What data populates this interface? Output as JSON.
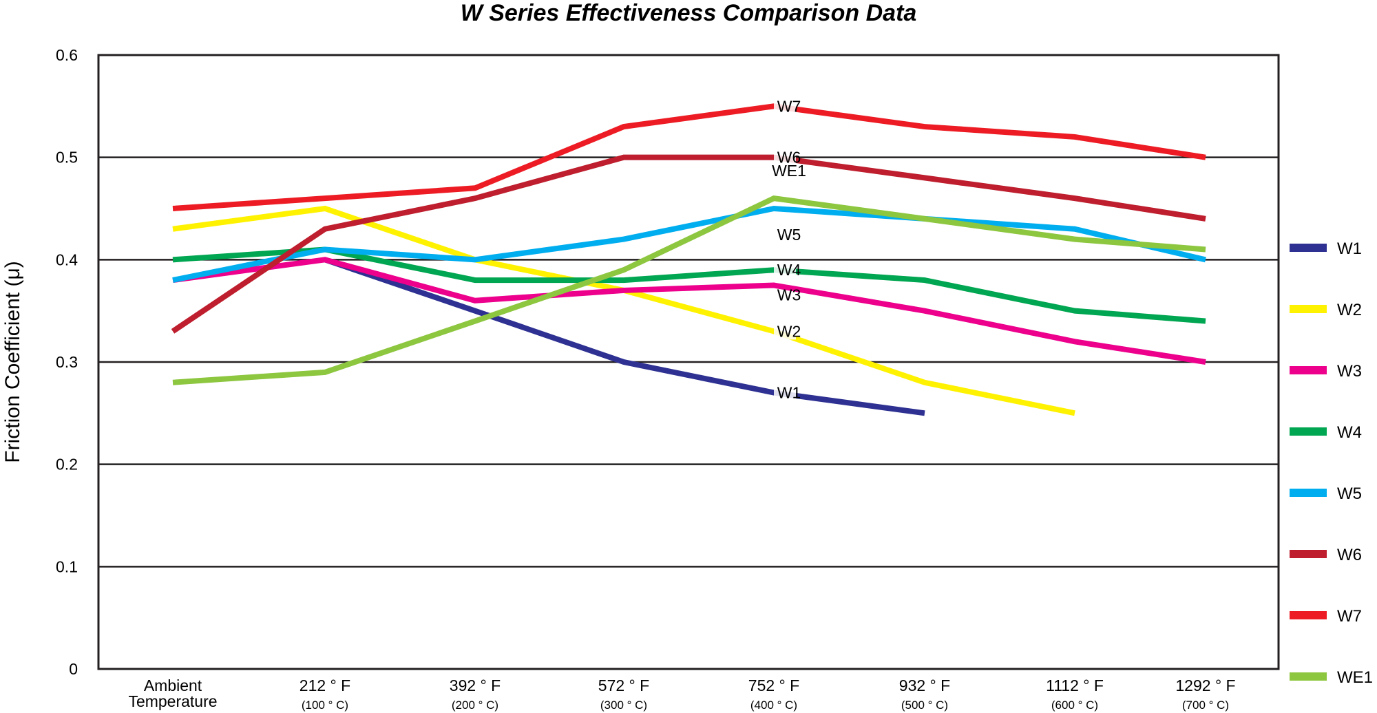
{
  "chart_data": {
    "type": "line",
    "title": "W Series Effectiveness Comparison Data",
    "xlabel": "",
    "ylabel": "Friction Coefficient (μ)",
    "ylim": [
      0,
      0.6
    ],
    "yticks": [
      "0",
      "0.1",
      "0.2",
      "0.3",
      "0.4",
      "0.5",
      "0.6"
    ],
    "grid": true,
    "legend": "right",
    "categories": [
      {
        "main": "Ambient",
        "sub": "Temperature"
      },
      {
        "main": "212 ° F",
        "sub": "(100 ° C)"
      },
      {
        "main": "392 ° F",
        "sub": "(200 ° C)"
      },
      {
        "main": "572 ° F",
        "sub": "(300 ° C)"
      },
      {
        "main": "752 ° F",
        "sub": "(400 ° C)"
      },
      {
        "main": "932 ° F",
        "sub": "(500 ° C)"
      },
      {
        "main": "1112 ° F",
        "sub": "(600 ° C)"
      },
      {
        "main": "1292 ° F",
        "sub": "(700 ° C)"
      }
    ],
    "series": [
      {
        "name": "W1",
        "color": "#2e3192",
        "values": [
          null,
          0.4,
          0.35,
          0.3,
          0.27,
          0.25,
          null,
          null
        ]
      },
      {
        "name": "W2",
        "color": "#fff200",
        "values": [
          0.43,
          0.45,
          0.4,
          0.37,
          0.33,
          0.28,
          0.25,
          null
        ]
      },
      {
        "name": "W3",
        "color": "#ec008c",
        "values": [
          0.38,
          0.4,
          0.36,
          0.37,
          0.375,
          0.35,
          0.32,
          0.3
        ]
      },
      {
        "name": "W4",
        "color": "#00a651",
        "values": [
          0.4,
          0.41,
          0.38,
          0.38,
          0.39,
          0.38,
          0.35,
          0.34
        ]
      },
      {
        "name": "W5",
        "color": "#00aeef",
        "values": [
          0.38,
          0.41,
          0.4,
          0.42,
          0.45,
          0.44,
          0.43,
          0.4
        ]
      },
      {
        "name": "W6",
        "color": "#be1e2d",
        "values": [
          0.33,
          0.43,
          0.46,
          0.5,
          0.5,
          0.48,
          0.46,
          0.44
        ]
      },
      {
        "name": "W7",
        "color": "#ed1c24",
        "values": [
          0.45,
          0.46,
          0.47,
          0.53,
          0.55,
          0.53,
          0.52,
          0.5
        ]
      },
      {
        "name": "WE1",
        "color": "#8dc63f",
        "values": [
          0.28,
          0.29,
          0.34,
          0.39,
          0.46,
          0.44,
          0.42,
          0.41
        ]
      }
    ]
  }
}
